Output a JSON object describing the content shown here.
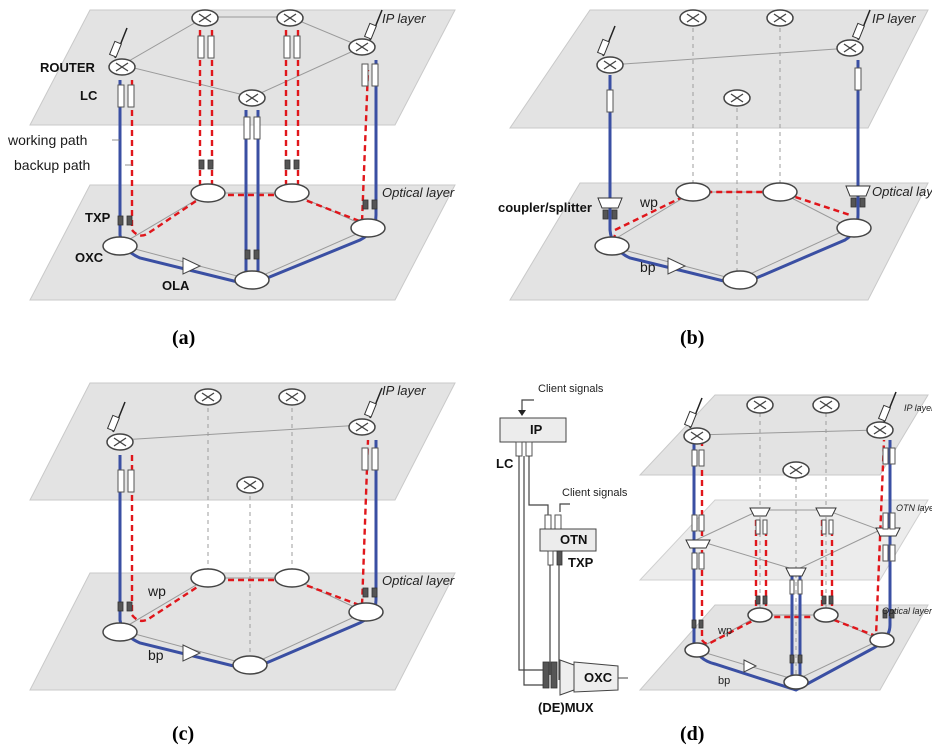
{
  "panels": {
    "a": {
      "caption": "(a)",
      "ip_layer": "IP layer",
      "optical_layer": "Optical layer",
      "router": "ROUTER",
      "lc": "LC",
      "working_path": "working path",
      "backup_path": "backup path",
      "txp": "TXP",
      "oxc": "OXC",
      "ola": "OLA"
    },
    "b": {
      "caption": "(b)",
      "ip_layer": "IP layer",
      "optical_layer": "Optical layer",
      "coupler": "coupler/splitter",
      "wp": "wp",
      "bp": "bp"
    },
    "c": {
      "caption": "(c)",
      "ip_layer": "IP layer",
      "optical_layer": "Optical layer",
      "wp": "wp",
      "bp": "bp"
    },
    "d": {
      "caption": "(d)",
      "client_signals_1": "Client signals",
      "client_signals_2": "Client signals",
      "ip": "IP",
      "lc": "LC",
      "otn": "OTN",
      "txp": "TXP",
      "oxc": "OXC",
      "demux": "(DE)MUX",
      "ip_layer": "IP layer",
      "otn_layer": "OTN layer",
      "optical_layer": "Optical layer",
      "wp": "wp",
      "bp": "bp"
    }
  }
}
